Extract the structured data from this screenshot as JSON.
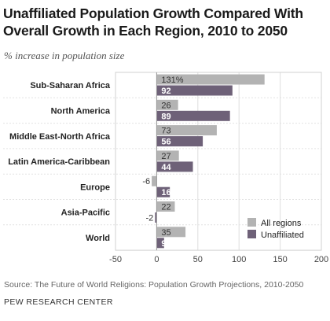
{
  "title": "Unaffiliated Population Growth Compared With Overall Growth in Each Region, 2010 to 2050",
  "subtitle": "% increase in population size",
  "source": "Source: The Future of World Religions: Population Growth Projections, 2010-2050",
  "organization": "PEW RESEARCH CENTER",
  "colors": {
    "all_regions": "#b3b3b3",
    "unaffiliated": "#6e6178"
  },
  "chart_data": {
    "type": "bar",
    "orientation": "horizontal",
    "categories": [
      "Sub-Saharan Africa",
      "North America",
      "Middle East-North Africa",
      "Latin America-Caribbean",
      "Europe",
      "Asia-Pacific",
      "World"
    ],
    "series": [
      {
        "name": "All regions",
        "values": [
          131,
          26,
          73,
          27,
          -6,
          22,
          35
        ],
        "labels": [
          "131%",
          "26",
          "73",
          "27",
          "-6",
          "22",
          "35"
        ]
      },
      {
        "name": "Unaffiliated",
        "values": [
          92,
          89,
          56,
          44,
          16,
          -2,
          9
        ],
        "labels": [
          "92",
          "89",
          "56",
          "44",
          "16",
          "-2",
          "9"
        ]
      }
    ],
    "xlim": [
      -50,
      200
    ],
    "xticks": [
      "-50",
      "0",
      "50",
      "100",
      "150",
      "200"
    ],
    "grid": true,
    "legend_position": "bottom-right"
  }
}
